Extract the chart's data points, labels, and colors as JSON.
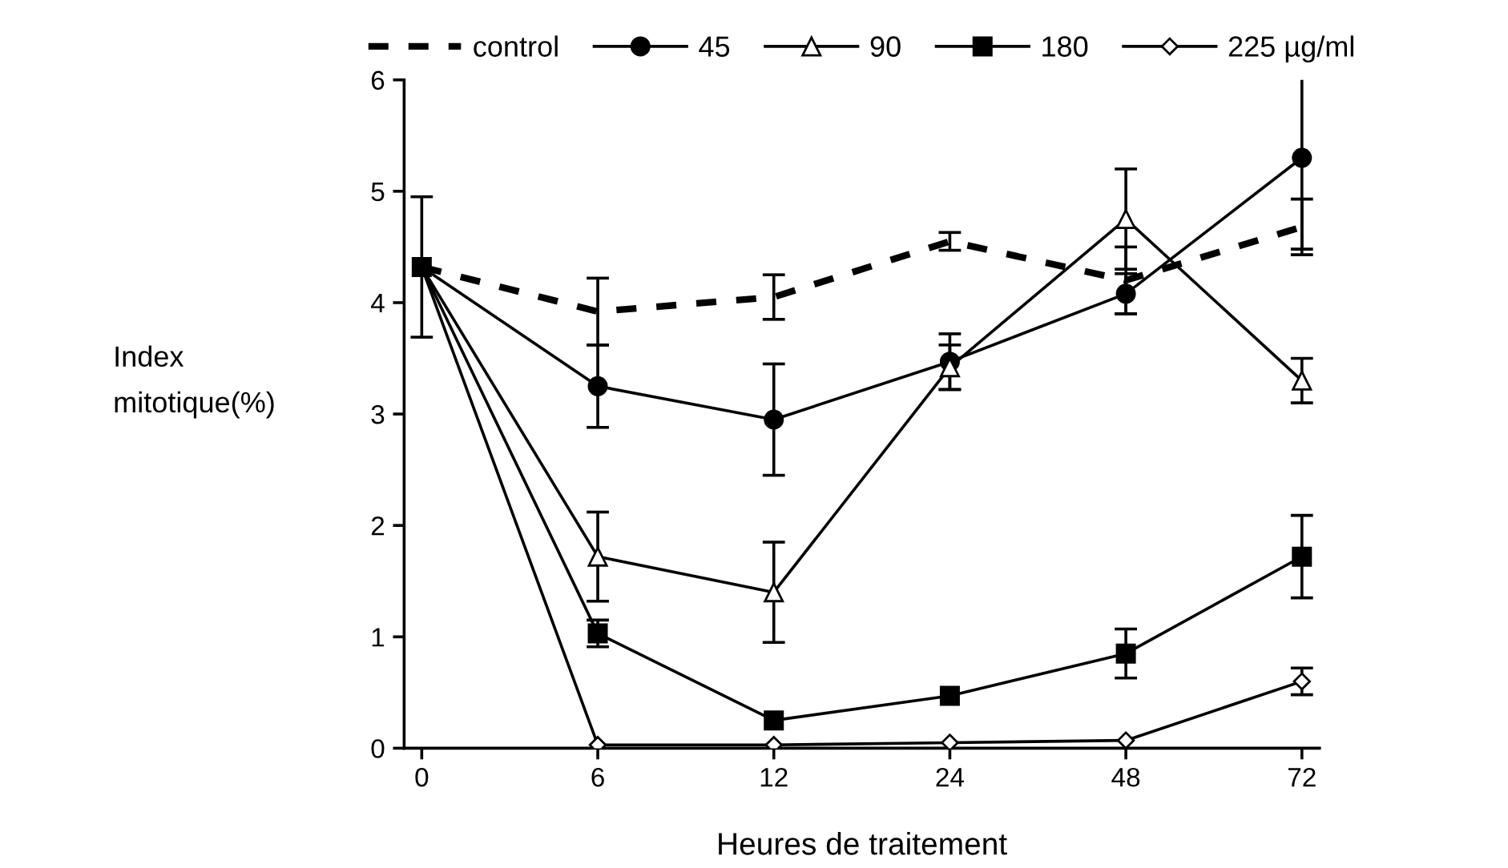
{
  "chart_data": {
    "type": "line",
    "xlabel": "Heures de traitement",
    "ylabel": "Index\nmitotique(%)",
    "categories": [
      "0",
      "6",
      "12",
      "24",
      "48",
      "72"
    ],
    "ylim": [
      0,
      6
    ],
    "yticks": [
      0,
      1,
      2,
      3,
      4,
      5,
      6
    ],
    "grid": false,
    "legend": "top",
    "series": [
      {
        "name": "control",
        "color": "#000000",
        "line_style": "dashed",
        "marker": "none",
        "values": [
          4.32,
          3.92,
          4.05,
          4.55,
          4.2,
          4.68
        ],
        "errors": [
          0.63,
          0.3,
          0.2,
          0.08,
          0.3,
          0.25
        ]
      },
      {
        "name": "45",
        "color": "#000000",
        "line_style": "solid",
        "marker": "circle",
        "values": [
          4.32,
          3.25,
          2.95,
          3.47,
          4.08,
          5.3
        ],
        "errors": [
          null,
          0.37,
          0.5,
          0.25,
          0.18,
          0.82
        ]
      },
      {
        "name": "90",
        "color": "#000000",
        "line_style": "solid",
        "marker": "triangle",
        "values": [
          4.32,
          1.72,
          1.4,
          3.42,
          4.75,
          3.3
        ],
        "errors": [
          null,
          0.4,
          0.45,
          0.2,
          0.45,
          0.2
        ]
      },
      {
        "name": "180",
        "color": "#000000",
        "line_style": "solid",
        "marker": "square",
        "values": [
          4.32,
          1.03,
          0.25,
          0.47,
          0.85,
          1.72
        ],
        "errors": [
          null,
          0.12,
          null,
          null,
          0.22,
          0.37
        ]
      },
      {
        "name": "225 µg/ml",
        "color": "#000000",
        "line_style": "solid",
        "marker": "diamond",
        "values": [
          4.32,
          0.03,
          0.03,
          0.05,
          0.07,
          0.6
        ],
        "errors": [
          null,
          null,
          null,
          null,
          null,
          0.12
        ]
      }
    ]
  }
}
